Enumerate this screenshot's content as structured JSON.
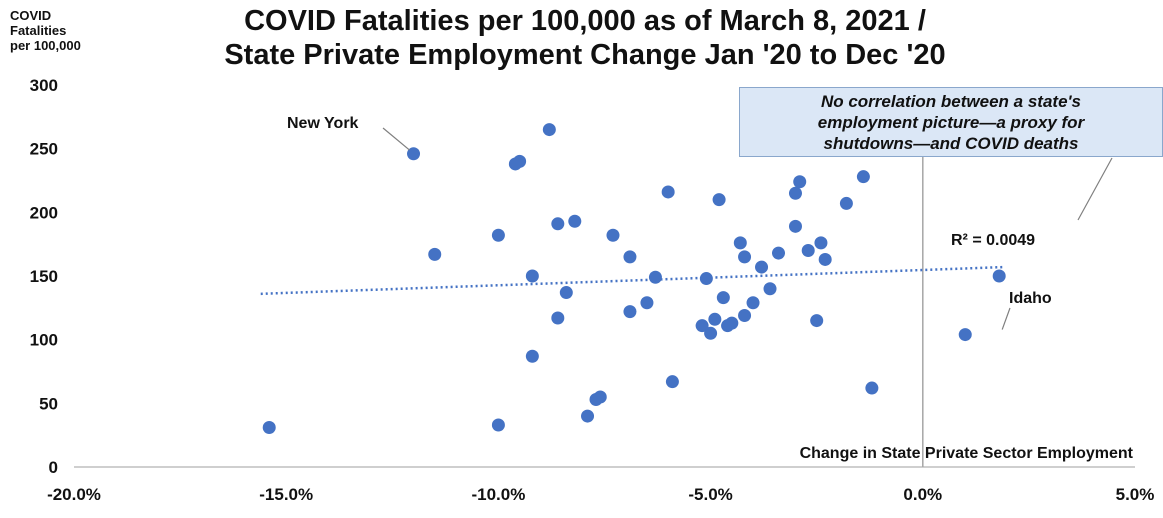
{
  "chart_data": {
    "type": "scatter",
    "title_line1": "COVID Fatalities per 100,000 as of March 8, 2021 /",
    "title_line2": "State Private Employment Change Jan '20 to Dec '20",
    "ylabel_lines": [
      "COVID",
      "Fatalities",
      "per 100,000"
    ],
    "xlabel": "Change in State Private Sector Employment",
    "x_ticks": [
      "-20.0%",
      "-15.0%",
      "-10.0%",
      "-5.0%",
      "0.0%",
      "5.0%"
    ],
    "y_ticks": [
      "0",
      "50",
      "100",
      "150",
      "200",
      "250",
      "300"
    ],
    "xlim": [
      -20,
      5
    ],
    "ylim": [
      0,
      300
    ],
    "point_color": "#4472c4",
    "trendline": {
      "x": [
        -15.6,
        1.9
      ],
      "y": [
        136,
        157
      ],
      "r_squared_label": "R² = 0.0049"
    },
    "annotations": [
      {
        "text": "New York",
        "x": -12.0,
        "y": 245
      },
      {
        "text": "Idaho",
        "x": 1.8,
        "y": 104
      }
    ],
    "callout_lines": [
      "No correlation between a state's",
      "employment picture—a proxy for",
      "shutdowns—and COVID deaths"
    ],
    "x": [
      -15.4,
      -12.0,
      -11.5,
      -10.0,
      -10.0,
      -9.6,
      -9.5,
      -9.2,
      -9.2,
      -8.8,
      -8.6,
      -8.6,
      -8.4,
      -8.2,
      -7.9,
      -7.7,
      -7.6,
      -7.3,
      -6.9,
      -6.9,
      -6.5,
      -6.3,
      -6.0,
      -5.9,
      -5.2,
      -5.1,
      -5.0,
      -4.9,
      -4.8,
      -4.7,
      -4.6,
      -4.5,
      -4.3,
      -4.2,
      -4.2,
      -4.0,
      -3.8,
      -3.6,
      -3.4,
      -3.0,
      -3.0,
      -2.9,
      -2.7,
      -2.5,
      -2.4,
      -2.3,
      -1.8,
      -1.4,
      -1.2,
      1.0,
      1.8
    ],
    "y": [
      31,
      246,
      167,
      182,
      33,
      238,
      240,
      87,
      150,
      265,
      117,
      191,
      137,
      193,
      40,
      53,
      55,
      182,
      165,
      122,
      129,
      149,
      216,
      67,
      111,
      148,
      105,
      116,
      210,
      133,
      111,
      113,
      176,
      119,
      165,
      129,
      157,
      140,
      168,
      215,
      189,
      224,
      170,
      115,
      176,
      163,
      207,
      228,
      62,
      104,
      150
    ]
  }
}
